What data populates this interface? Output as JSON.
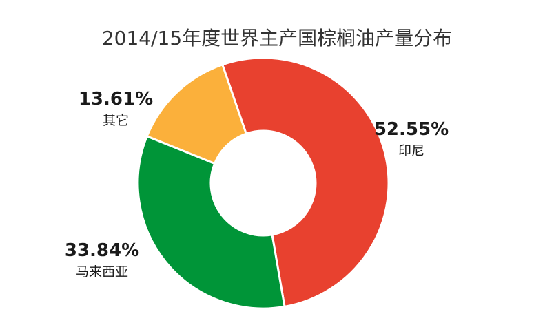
{
  "chart_data": {
    "type": "pie",
    "donut": true,
    "title": "2014/15年度世界主产国棕榈油产量分布",
    "slices": [
      {
        "name": "印尼",
        "value": 52.55,
        "label": "52.55%",
        "color": "#e8412f"
      },
      {
        "name": "马来西亚",
        "value": 33.84,
        "label": "33.84%",
        "color": "#009538"
      },
      {
        "name": "其它",
        "value": 13.61,
        "label": "13.61%",
        "color": "#fbb03b"
      }
    ],
    "legend": "none"
  }
}
